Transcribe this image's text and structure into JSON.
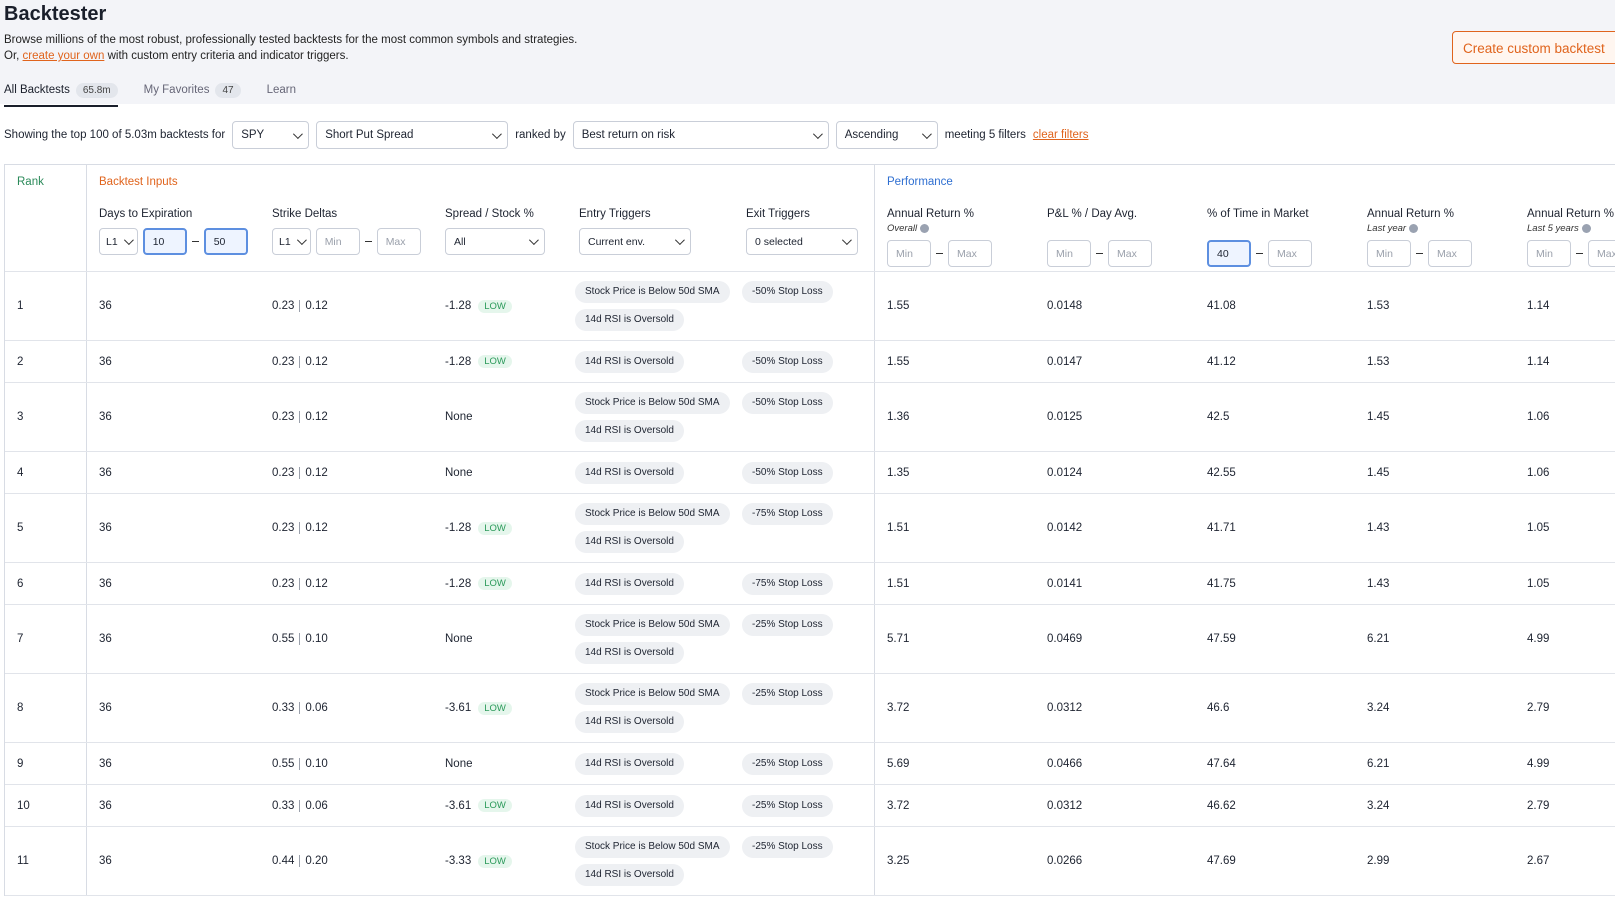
{
  "header": {
    "title": "Backtester",
    "description": "Browse millions of the most robust, professionally tested backtests for the most common symbols and strategies.",
    "line2_prefix": "Or,",
    "link": "create your own",
    "line2_suffix": "with custom entry criteria and indicator triggers.",
    "button": "Create custom backtest"
  },
  "tabs": [
    {
      "label": "All Backtests",
      "count": "65.8m"
    },
    {
      "label": "My Favorites",
      "count": "47"
    },
    {
      "label": "Learn"
    }
  ],
  "filter_bar": {
    "prefix": "Showing the top 100 of 5.03m backtests for",
    "symbol": "SPY",
    "strategy": "Short Put Spread",
    "ranked_by": "ranked by",
    "ranking": "Best return on risk",
    "order": "Ascending",
    "filters_text": "meeting 5 filters",
    "clear": "clear filters"
  },
  "table": {
    "groups": {
      "rank": "Rank",
      "inputs": "Backtest Inputs",
      "performance": "Performance"
    },
    "columns": [
      {
        "title": "Days to Expiration",
        "controls": [
          {
            "select": "L1"
          },
          {
            "value": "10"
          },
          {
            "value": "50"
          }
        ]
      },
      {
        "title": "Strike Deltas",
        "controls": [
          {
            "select": "L1"
          },
          {
            "placeholder": "Min"
          },
          {
            "placeholder": "Max"
          }
        ]
      },
      {
        "title": "Spread / Stock %",
        "controls": [
          {
            "select": "All"
          }
        ]
      },
      {
        "title": "Entry Triggers",
        "controls": [
          {
            "select": "Current env."
          }
        ]
      },
      {
        "title": "Exit Triggers",
        "controls": [
          {
            "select": "0 selected"
          }
        ]
      },
      {
        "title": "Annual Return %",
        "subtitle": "Overall",
        "controls": [
          {
            "placeholder": "Min"
          },
          {
            "placeholder": "Max"
          }
        ]
      },
      {
        "title": "P&L % / Day Avg.",
        "controls": [
          {
            "placeholder": "Min"
          },
          {
            "placeholder": "Max"
          }
        ]
      },
      {
        "title": "% of Time in Market",
        "controls": [
          {
            "value": "40"
          },
          {
            "placeholder": "Max"
          }
        ]
      },
      {
        "title": "Annual Return %",
        "subtitle": "Last year",
        "controls": [
          {
            "placeholder": "Min"
          },
          {
            "placeholder": "Max"
          }
        ]
      },
      {
        "title": "Annual Return %",
        "subtitle": "Last 5 years",
        "controls": [
          {
            "placeholder": "Min"
          },
          {
            "placeholder": "Max"
          }
        ]
      }
    ],
    "rows": [
      {
        "rank": "1",
        "dte": "36",
        "deltas": [
          "0.23",
          "0.12"
        ],
        "spread": "-1.28",
        "tag": "LOW",
        "entry": [
          "Stock Price is Below 50d SMA",
          "14d RSI is Oversold"
        ],
        "exit": [
          "-50% Stop Loss"
        ],
        "perf": [
          "1.55",
          "0.0148",
          "41.08",
          "1.53",
          "1.14"
        ]
      },
      {
        "rank": "2",
        "dte": "36",
        "deltas": [
          "0.23",
          "0.12"
        ],
        "spread": "-1.28",
        "tag": "LOW",
        "entry": [
          "14d RSI is Oversold"
        ],
        "exit": [
          "-50% Stop Loss"
        ],
        "perf": [
          "1.55",
          "0.0147",
          "41.12",
          "1.53",
          "1.14"
        ]
      },
      {
        "rank": "3",
        "dte": "36",
        "deltas": [
          "0.23",
          "0.12"
        ],
        "spread": "None",
        "entry": [
          "Stock Price is Below 50d SMA",
          "14d RSI is Oversold"
        ],
        "exit": [
          "-50% Stop Loss"
        ],
        "perf": [
          "1.36",
          "0.0125",
          "42.5",
          "1.45",
          "1.06"
        ]
      },
      {
        "rank": "4",
        "dte": "36",
        "deltas": [
          "0.23",
          "0.12"
        ],
        "spread": "None",
        "entry": [
          "14d RSI is Oversold"
        ],
        "exit": [
          "-50% Stop Loss"
        ],
        "perf": [
          "1.35",
          "0.0124",
          "42.55",
          "1.45",
          "1.06"
        ]
      },
      {
        "rank": "5",
        "dte": "36",
        "deltas": [
          "0.23",
          "0.12"
        ],
        "spread": "-1.28",
        "tag": "LOW",
        "entry": [
          "Stock Price is Below 50d SMA",
          "14d RSI is Oversold"
        ],
        "exit": [
          "-75% Stop Loss"
        ],
        "perf": [
          "1.51",
          "0.0142",
          "41.71",
          "1.43",
          "1.05"
        ]
      },
      {
        "rank": "6",
        "dte": "36",
        "deltas": [
          "0.23",
          "0.12"
        ],
        "spread": "-1.28",
        "tag": "LOW",
        "entry": [
          "14d RSI is Oversold"
        ],
        "exit": [
          "-75% Stop Loss"
        ],
        "perf": [
          "1.51",
          "0.0141",
          "41.75",
          "1.43",
          "1.05"
        ]
      },
      {
        "rank": "7",
        "dte": "36",
        "deltas": [
          "0.55",
          "0.10"
        ],
        "spread": "None",
        "entry": [
          "Stock Price is Below 50d SMA",
          "14d RSI is Oversold"
        ],
        "exit": [
          "-25% Stop Loss"
        ],
        "perf": [
          "5.71",
          "0.0469",
          "47.59",
          "6.21",
          "4.99"
        ]
      },
      {
        "rank": "8",
        "dte": "36",
        "deltas": [
          "0.33",
          "0.06"
        ],
        "spread": "-3.61",
        "tag": "LOW",
        "entry": [
          "Stock Price is Below 50d SMA",
          "14d RSI is Oversold"
        ],
        "exit": [
          "-25% Stop Loss"
        ],
        "perf": [
          "3.72",
          "0.0312",
          "46.6",
          "3.24",
          "2.79"
        ]
      },
      {
        "rank": "9",
        "dte": "36",
        "deltas": [
          "0.55",
          "0.10"
        ],
        "spread": "None",
        "entry": [
          "14d RSI is Oversold"
        ],
        "exit": [
          "-25% Stop Loss"
        ],
        "perf": [
          "5.69",
          "0.0466",
          "47.64",
          "6.21",
          "4.99"
        ]
      },
      {
        "rank": "10",
        "dte": "36",
        "deltas": [
          "0.33",
          "0.06"
        ],
        "spread": "-3.61",
        "tag": "LOW",
        "entry": [
          "14d RSI is Oversold"
        ],
        "exit": [
          "-25% Stop Loss"
        ],
        "perf": [
          "3.72",
          "0.0312",
          "46.62",
          "3.24",
          "2.79"
        ]
      },
      {
        "rank": "11",
        "dte": "36",
        "deltas": [
          "0.44",
          "0.20"
        ],
        "spread": "-3.33",
        "tag": "LOW",
        "entry": [
          "Stock Price is Below 50d SMA",
          "14d RSI is Oversold"
        ],
        "exit": [
          "-25% Stop Loss"
        ],
        "perf": [
          "3.25",
          "0.0266",
          "47.69",
          "2.99",
          "2.67"
        ]
      }
    ]
  }
}
